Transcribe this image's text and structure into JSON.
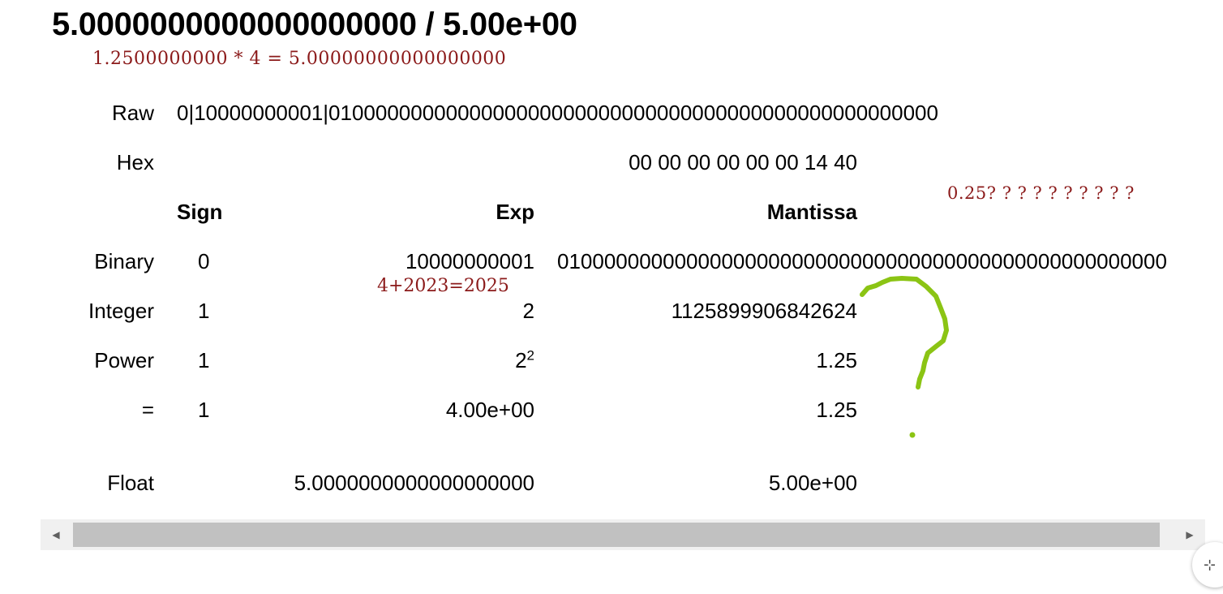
{
  "title": "5.0000000000000000000 / 5.00e+00",
  "notes": {
    "top": "1.2500000000 * 4 = 5.00000000000000000",
    "right": "0.25? ? ? ? ? ? ? ? ? ?",
    "exp": "4+2023=2025"
  },
  "rows": {
    "raw": {
      "label": "Raw",
      "value": "0|10000000001|0100000000000000000000000000000000000000000000000000"
    },
    "hex": {
      "label": "Hex",
      "value": "00 00 00 00 00 00 14 40"
    },
    "headers": {
      "sign": "Sign",
      "exp": "Exp",
      "mantissa": "Mantissa"
    },
    "binary": {
      "label": "Binary",
      "sign": "0",
      "exp": "10000000001",
      "mantissa": "0100000000000000000000000000000000000000000000000000"
    },
    "integer": {
      "label": "Integer",
      "sign": "1",
      "exp": "2",
      "mantissa": "1125899906842624"
    },
    "power": {
      "label": "Power",
      "sign": "1",
      "exp_base": "2",
      "exp_sup": "2",
      "mantissa": "1.25"
    },
    "equals": {
      "label": "=",
      "sign": "1",
      "exp": "4.00e+00",
      "mantissa": "1.25"
    },
    "float": {
      "label": "Float",
      "decimal": "5.0000000000000000000",
      "sci": "5.00e+00"
    }
  },
  "scrollbar": {
    "left_arrow": "◀",
    "right_arrow": "▶"
  },
  "fab_icon": "⊹",
  "annotation_color": "#8bc414"
}
